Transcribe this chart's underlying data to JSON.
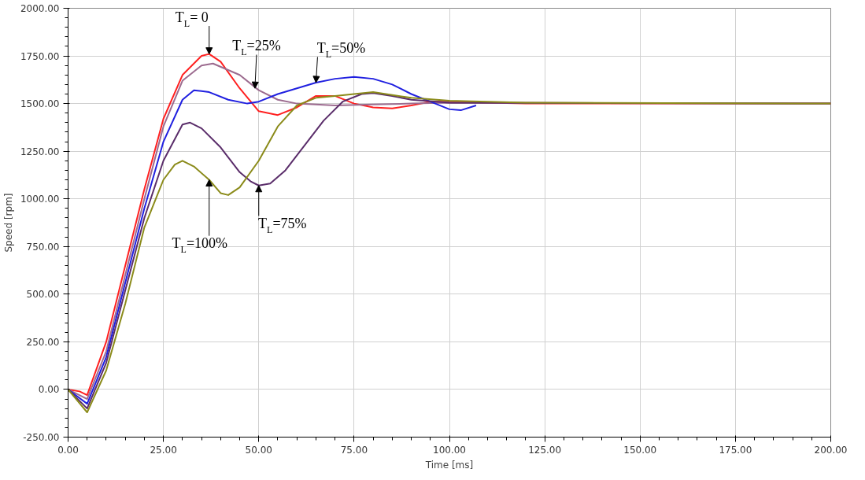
{
  "chart_data": {
    "type": "line",
    "xlabel": "Time [ms]",
    "ylabel": "Speed [rpm]",
    "grid": true,
    "line_style": "solid",
    "xlim": [
      0,
      200
    ],
    "ylim": [
      -250,
      2000
    ],
    "xticks": [
      {
        "value": 0,
        "label": "0.00"
      },
      {
        "value": 25,
        "label": "25.00"
      },
      {
        "value": 50,
        "label": "50.00"
      },
      {
        "value": 75,
        "label": "75.00"
      },
      {
        "value": 100,
        "label": "100.00"
      },
      {
        "value": 125,
        "label": "125.00"
      },
      {
        "value": 150,
        "label": "150.00"
      },
      {
        "value": 175,
        "label": "175.00"
      },
      {
        "value": 200,
        "label": "200.00"
      }
    ],
    "yticks": [
      {
        "value": -250,
        "label": "-250.00"
      },
      {
        "value": 0,
        "label": "0.00"
      },
      {
        "value": 250,
        "label": "250.00"
      },
      {
        "value": 500,
        "label": "500.00"
      },
      {
        "value": 750,
        "label": "750.00"
      },
      {
        "value": 1000,
        "label": "1000.00"
      },
      {
        "value": 1250,
        "label": "1250.00"
      },
      {
        "value": 1500,
        "label": "1500.00"
      },
      {
        "value": 1750,
        "label": "1750.00"
      },
      {
        "value": 2000,
        "label": "2000.00"
      }
    ],
    "series": [
      {
        "color": "#ff2020",
        "x": [
          0,
          3,
          5,
          10,
          15,
          20,
          25,
          30,
          35,
          37,
          40,
          45,
          50,
          55,
          60,
          65,
          70,
          75,
          80,
          85,
          90,
          95,
          100,
          110,
          120,
          200
        ],
        "values": [
          0,
          -10,
          -30,
          250,
          650,
          1050,
          1420,
          1650,
          1750,
          1760,
          1720,
          1580,
          1460,
          1440,
          1480,
          1540,
          1540,
          1500,
          1480,
          1475,
          1490,
          1510,
          1510,
          1505,
          1500,
          1500
        ]
      },
      {
        "color": "#9c6b8f",
        "x": [
          0,
          5,
          10,
          15,
          20,
          25,
          30,
          35,
          38,
          45,
          50,
          55,
          60,
          70,
          80,
          90,
          100,
          200
        ],
        "values": [
          0,
          -50,
          200,
          600,
          1000,
          1380,
          1620,
          1700,
          1710,
          1650,
          1570,
          1520,
          1500,
          1490,
          1495,
          1500,
          1505,
          1500
        ]
      },
      {
        "color": "#2020e0",
        "x": [
          0,
          5,
          10,
          15,
          20,
          25,
          30,
          33,
          37,
          42,
          47,
          50,
          55,
          60,
          65,
          70,
          75,
          80,
          85,
          90,
          95,
          100,
          103,
          107
        ],
        "values": [
          0,
          -75,
          170,
          560,
          950,
          1300,
          1520,
          1570,
          1560,
          1520,
          1500,
          1510,
          1550,
          1580,
          1610,
          1630,
          1640,
          1630,
          1600,
          1550,
          1510,
          1470,
          1465,
          1490
        ]
      },
      {
        "color": "#5a2d6a",
        "x": [
          0,
          5,
          10,
          15,
          20,
          25,
          30,
          32,
          35,
          40,
          45,
          48,
          50,
          53,
          57,
          62,
          67,
          72,
          77,
          80,
          85,
          90,
          100,
          200
        ],
        "values": [
          0,
          -100,
          140,
          520,
          900,
          1200,
          1390,
          1400,
          1370,
          1270,
          1140,
          1090,
          1070,
          1080,
          1150,
          1280,
          1410,
          1510,
          1550,
          1555,
          1540,
          1520,
          1505,
          1500
        ]
      },
      {
        "color": "#8b8b1a",
        "x": [
          0,
          5,
          10,
          15,
          20,
          25,
          28,
          30,
          33,
          37,
          40,
          42,
          45,
          50,
          55,
          60,
          65,
          70,
          80,
          90,
          100,
          120,
          200
        ],
        "values": [
          0,
          -120,
          100,
          450,
          850,
          1100,
          1180,
          1200,
          1170,
          1100,
          1030,
          1020,
          1060,
          1200,
          1380,
          1490,
          1530,
          1540,
          1560,
          1530,
          1515,
          1505,
          1500
        ]
      }
    ],
    "annotations": [
      {
        "text": "T$_{L}$= 0",
        "x": 37,
        "y": 1760
      },
      {
        "text": "T$_{L}$=25%",
        "x": 49,
        "y": 1580
      },
      {
        "text": "T$_{L}$=50%",
        "x": 65,
        "y": 1610
      },
      {
        "text": "T$_{L}$=75%",
        "x": 50,
        "y": 1070
      },
      {
        "text": "T$_{L}$=100%",
        "x": 37,
        "y": 1100
      }
    ]
  }
}
